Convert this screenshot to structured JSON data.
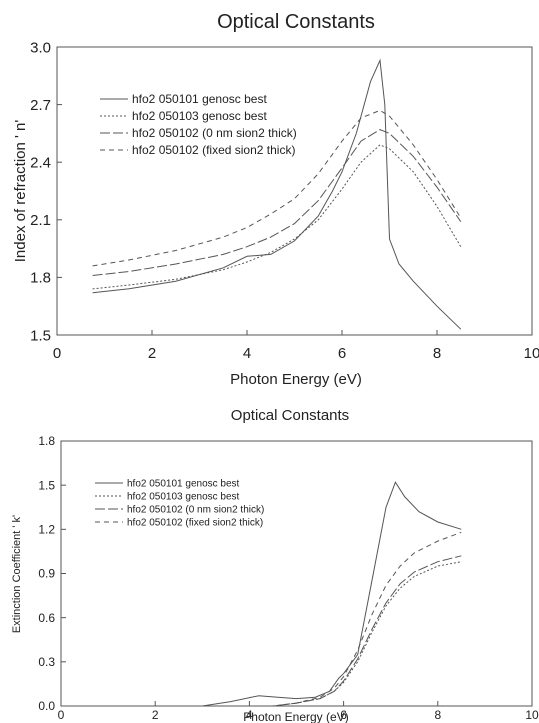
{
  "chart_data": [
    {
      "type": "line",
      "title": "Optical Constants",
      "xlabel": "Photon Energy (eV)",
      "ylabel": "Index of refraction ' n'",
      "xlim": [
        0,
        10
      ],
      "ylim": [
        1.5,
        3.0
      ],
      "xticks": [
        "0",
        "2",
        "4",
        "6",
        "8",
        "10"
      ],
      "yticks": [
        "1.5",
        "1.8",
        "2.1",
        "2.4",
        "2.7",
        "3.0"
      ],
      "grid": false,
      "legend_position": "top-left",
      "series": [
        {
          "name": "hfo2 050101 genosc best",
          "style": "solid",
          "x": [
            0.75,
            1.5,
            2.5,
            3.5,
            4.0,
            4.5,
            5.0,
            5.5,
            5.8,
            6.0,
            6.3,
            6.6,
            6.8,
            6.9,
            7.0,
            7.2,
            7.5,
            8.0,
            8.5
          ],
          "y": [
            1.72,
            1.74,
            1.78,
            1.85,
            1.91,
            1.92,
            1.99,
            2.12,
            2.25,
            2.35,
            2.55,
            2.82,
            2.93,
            2.7,
            2.0,
            1.87,
            1.78,
            1.65,
            1.53
          ]
        },
        {
          "name": "hfo2 050103 genosc best",
          "style": "dot",
          "x": [
            0.75,
            1.5,
            2.5,
            3.5,
            4.0,
            4.5,
            5.0,
            5.5,
            6.0,
            6.4,
            6.8,
            7.0,
            7.5,
            8.0,
            8.5
          ],
          "y": [
            1.74,
            1.76,
            1.79,
            1.84,
            1.88,
            1.93,
            2.0,
            2.1,
            2.26,
            2.4,
            2.49,
            2.47,
            2.35,
            2.17,
            1.96
          ]
        },
        {
          "name": "hfo2 050102 (0 nm sion2 thick)",
          "style": "longdash",
          "x": [
            0.75,
            1.5,
            2.5,
            3.5,
            4.0,
            4.5,
            5.0,
            5.5,
            6.0,
            6.4,
            6.8,
            7.0,
            7.5,
            8.0,
            8.5
          ],
          "y": [
            1.81,
            1.83,
            1.87,
            1.92,
            1.96,
            2.01,
            2.08,
            2.2,
            2.37,
            2.51,
            2.57,
            2.55,
            2.43,
            2.27,
            2.09
          ]
        },
        {
          "name": "hfo2 050102 (fixed sion2 thick)",
          "style": "dash",
          "x": [
            0.75,
            1.5,
            2.5,
            3.5,
            4.0,
            4.5,
            5.0,
            5.5,
            6.0,
            6.4,
            6.8,
            7.0,
            7.5,
            8.0,
            8.5
          ],
          "y": [
            1.86,
            1.89,
            1.94,
            2.01,
            2.06,
            2.13,
            2.21,
            2.34,
            2.51,
            2.63,
            2.67,
            2.64,
            2.49,
            2.31,
            2.11
          ]
        }
      ]
    },
    {
      "type": "line",
      "title": "Optical Constants",
      "xlabel": "Photon Energy (eV)",
      "ylabel": "Extinction Coefficient ' k'",
      "xlim": [
        0,
        10
      ],
      "ylim": [
        0.0,
        1.8
      ],
      "xticks": [
        "0",
        "2",
        "4",
        "6",
        "8",
        "10"
      ],
      "yticks": [
        "0.0",
        "0.3",
        "0.6",
        "0.9",
        "1.2",
        "1.5",
        "1.8"
      ],
      "grid": false,
      "legend_position": "top-left",
      "series": [
        {
          "name": "hfo2 050101 genosc best",
          "style": "solid",
          "x": [
            0.75,
            3.0,
            3.6,
            4.2,
            4.6,
            5.0,
            5.4,
            5.7,
            5.9,
            6.0,
            6.3,
            6.6,
            6.9,
            7.1,
            7.3,
            7.6,
            8.0,
            8.5
          ],
          "y": [
            0.0,
            0.0,
            0.03,
            0.07,
            0.06,
            0.05,
            0.06,
            0.1,
            0.19,
            0.22,
            0.35,
            0.85,
            1.35,
            1.52,
            1.42,
            1.32,
            1.25,
            1.2
          ]
        },
        {
          "name": "hfo2 050103 genosc best",
          "style": "dot",
          "x": [
            0.75,
            4.5,
            5.0,
            5.5,
            5.8,
            6.0,
            6.3,
            6.6,
            6.9,
            7.2,
            7.5,
            8.0,
            8.5
          ],
          "y": [
            0.0,
            0.0,
            0.02,
            0.05,
            0.1,
            0.16,
            0.3,
            0.5,
            0.68,
            0.8,
            0.88,
            0.95,
            0.98
          ]
        },
        {
          "name": "hfo2 050102 (0 nm sion2 thick)",
          "style": "longdash",
          "x": [
            0.75,
            4.5,
            5.0,
            5.5,
            5.8,
            6.0,
            6.3,
            6.6,
            6.9,
            7.2,
            7.5,
            8.0,
            8.5
          ],
          "y": [
            0.0,
            0.0,
            0.02,
            0.05,
            0.1,
            0.17,
            0.32,
            0.52,
            0.7,
            0.83,
            0.91,
            0.98,
            1.02
          ]
        },
        {
          "name": "hfo2 050102 (fixed sion2 thick)",
          "style": "dash",
          "x": [
            0.75,
            4.5,
            5.0,
            5.5,
            5.8,
            6.0,
            6.3,
            6.6,
            6.9,
            7.2,
            7.5,
            8.0,
            8.5
          ],
          "y": [
            0.0,
            0.0,
            0.02,
            0.06,
            0.12,
            0.2,
            0.38,
            0.62,
            0.82,
            0.95,
            1.04,
            1.12,
            1.18
          ]
        }
      ]
    }
  ]
}
